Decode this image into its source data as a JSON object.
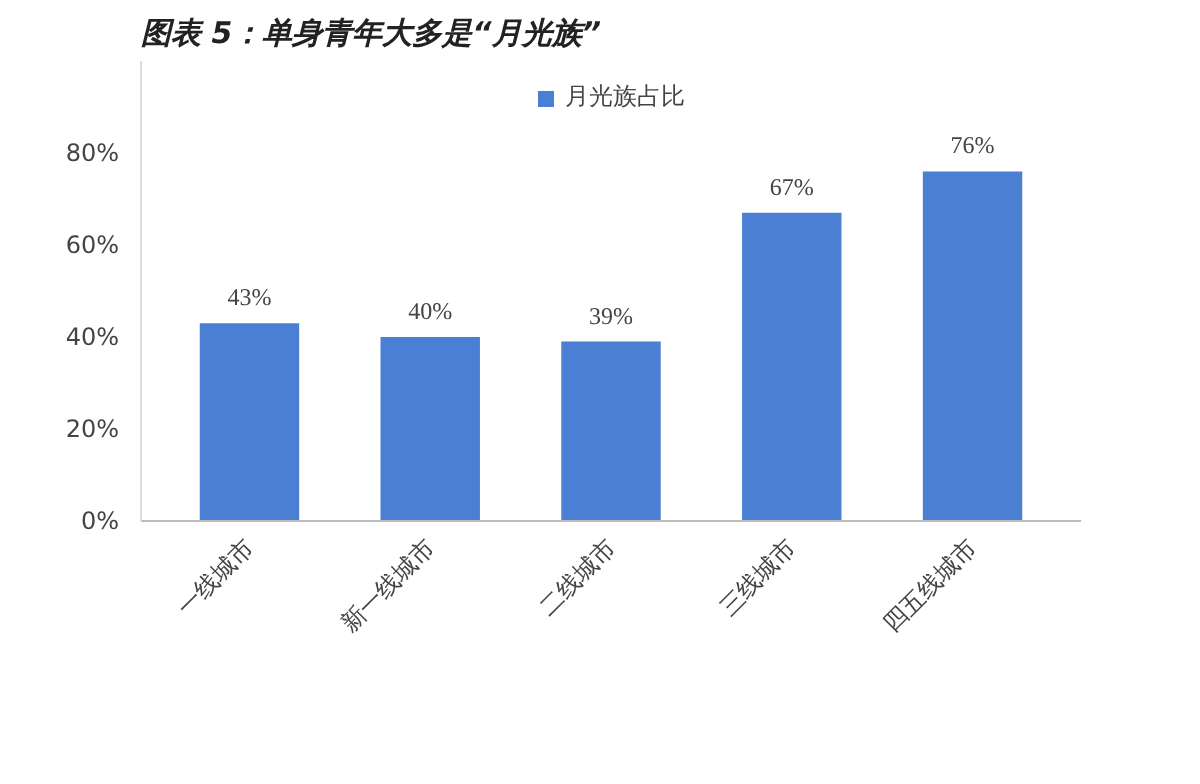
{
  "chart_data": {
    "type": "bar",
    "title": "图表 5：单身青年大多是“月光族”",
    "categories": [
      "一线城市",
      "新一线城市",
      "二线城市",
      "三线城市",
      "四五线城市"
    ],
    "series": [
      {
        "name": "月光族占比",
        "color": "#4a7fd4",
        "values": [
          43,
          40,
          39,
          67,
          76
        ]
      }
    ],
    "ylim": [
      0,
      100
    ],
    "yticks": [
      {
        "value": 0,
        "label": "0%"
      },
      {
        "value": 20,
        "label": "20%"
      },
      {
        "value": 40,
        "label": "40%"
      },
      {
        "value": 60,
        "label": "60%"
      },
      {
        "value": 80,
        "label": "80%"
      }
    ],
    "value_labels": [
      "43%",
      "40%",
      "39%",
      "67%",
      "76%"
    ],
    "legend": "top",
    "grid": false
  }
}
